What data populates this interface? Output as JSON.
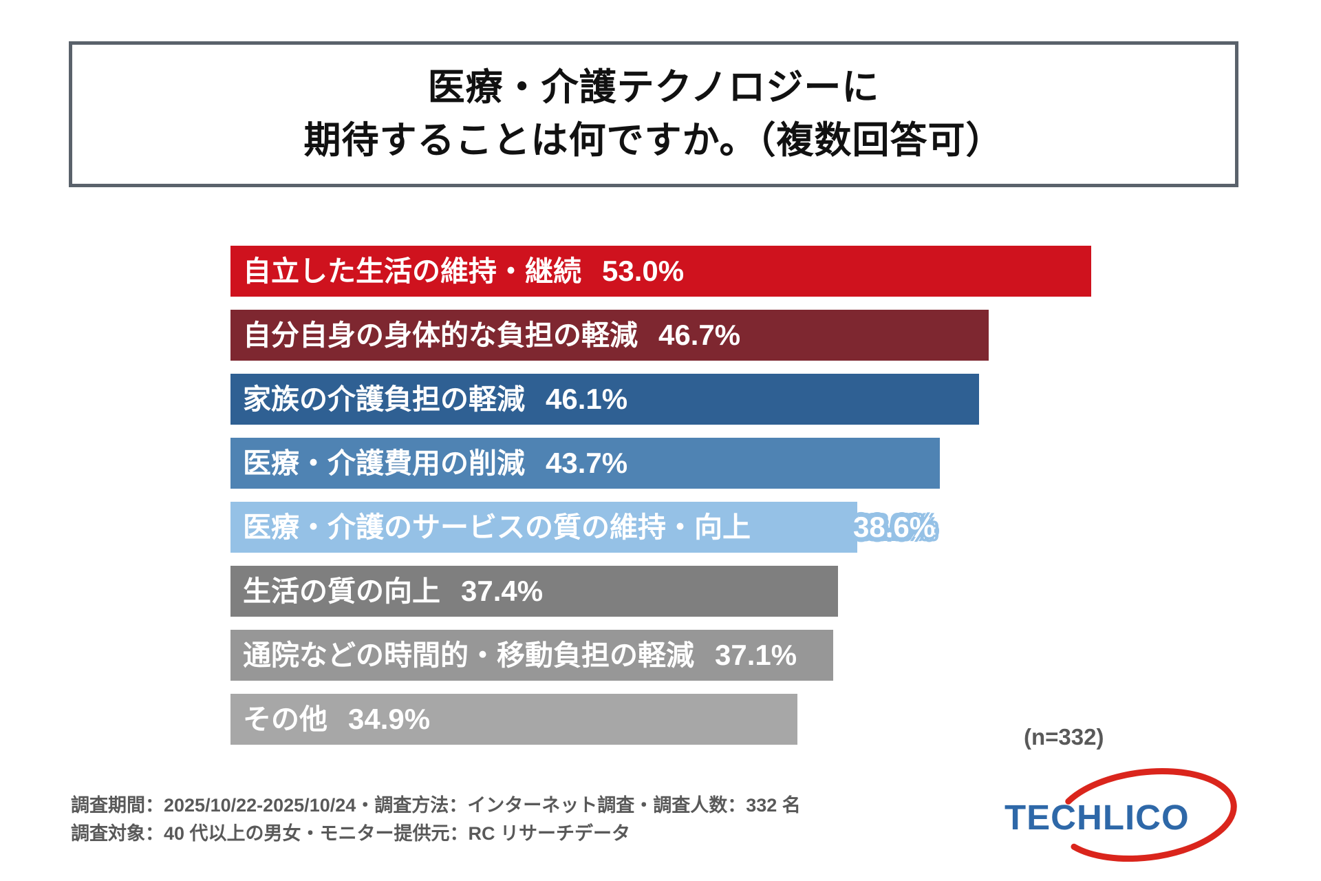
{
  "header": {
    "title_line1": "医療・介護テクノロジーに",
    "title_line2": "期待することは何ですか。（複数回答可）"
  },
  "chart_data": {
    "type": "bar",
    "orientation": "horizontal",
    "title": "医療・介護テクノロジーに期待することは何ですか。（複数回答可）",
    "xlim": [
      0,
      53
    ],
    "grid": false,
    "legend": "none",
    "categories": [
      "自立した生活の維持・継続",
      "自分自身の身体的な負担の軽減",
      "家族の介護負担の軽減",
      "医療・介護費用の削減",
      "医療・介護のサービスの質の維持・向上",
      "生活の質の向上",
      "通院などの時間的・移動負担の軽減",
      "その他"
    ],
    "values": [
      53.0,
      46.7,
      46.1,
      43.7,
      38.6,
      37.4,
      37.1,
      34.9
    ],
    "bars": [
      {
        "label": "自立した生活の維持・継続",
        "value": 53.0,
        "value_label": "53.0%",
        "color": "#cf121e",
        "value_outside": false
      },
      {
        "label": "自分自身の身体的な負担の軽減",
        "value": 46.7,
        "value_label": "46.7%",
        "color": "#7e2730",
        "value_outside": false
      },
      {
        "label": "家族の介護負担の軽減",
        "value": 46.1,
        "value_label": "46.1%",
        "color": "#2f6093",
        "value_outside": false
      },
      {
        "label": "医療・介護費用の削減",
        "value": 43.7,
        "value_label": "43.7%",
        "color": "#4f83b3",
        "value_outside": false
      },
      {
        "label": "医療・介護のサービスの質の維持・向上",
        "value": 38.6,
        "value_label": "38.6%",
        "color": "#95c1e6",
        "value_outside": true
      },
      {
        "label": "生活の質の向上",
        "value": 37.4,
        "value_label": "37.4%",
        "color": "#7f7f7f",
        "value_outside": false
      },
      {
        "label": "通院などの時間的・移動負担の軽減",
        "value": 37.1,
        "value_label": "37.1%",
        "color": "#979797",
        "value_outside": false
      },
      {
        "label": "その他",
        "value": 34.9,
        "value_label": "34.9%",
        "color": "#a7a7a7",
        "value_outside": false
      }
    ],
    "sample_size_note": "(n=332)"
  },
  "footer": {
    "line1": "調査期間：2025/10/22-2025/10/24・調査方法：インターネット調査・調査人数：332 名",
    "line2": "調査対象：40 代以上の男女・モニター提供元：RC リサーチデータ"
  },
  "logo": {
    "text": "TECHLICO",
    "text_color": "#2e68a8",
    "ring_color": "#da251c"
  }
}
